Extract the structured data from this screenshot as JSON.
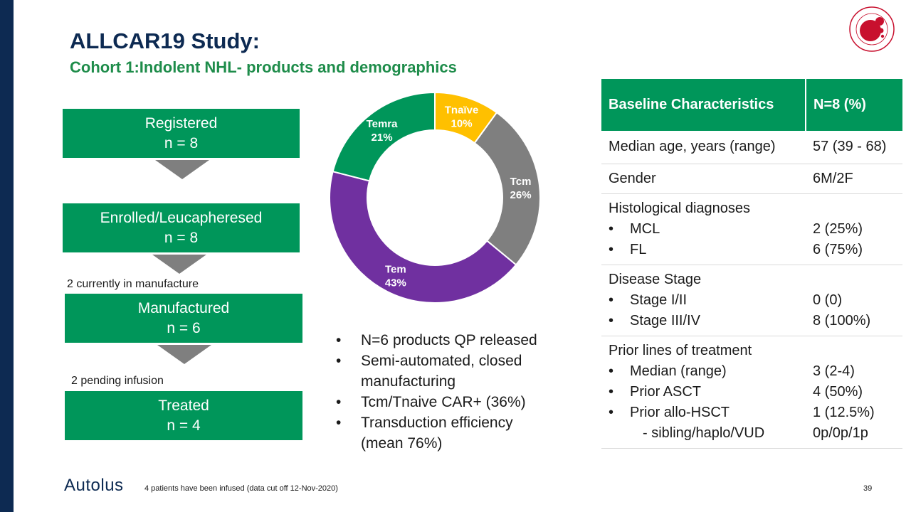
{
  "header": {
    "title": "ALLCAR19 Study:",
    "subtitle": "Cohort 1:Indolent NHL- products and demographics"
  },
  "flow": {
    "registered": {
      "label": "Registered",
      "n": "n = 8"
    },
    "enrolled": {
      "label": "Enrolled/Leucapheresed",
      "n": "n = 8"
    },
    "manufacture_note": "2 currently in manufacture",
    "manufactured": {
      "label": "Manufactured",
      "n": "n = 6"
    },
    "infusion_note": "2 pending infusion",
    "treated": {
      "label": "Treated",
      "n": "n = 4"
    }
  },
  "chart_data": {
    "type": "pie",
    "hole": true,
    "title": "",
    "categories": [
      "Tnaïve",
      "Tcm",
      "Tem",
      "Temra"
    ],
    "values": [
      10,
      26,
      43,
      21
    ],
    "labels": [
      "10%",
      "26%",
      "43%",
      "21%"
    ],
    "colors": [
      "#ffc000",
      "#7f7f7f",
      "#7030a0",
      "#00965a"
    ]
  },
  "bullets": [
    "N=6 products QP released",
    "Semi-automated, closed manufacturing",
    "Tcm/Tnaive CAR+ (36%)",
    "Transduction efficiency (mean 76%)"
  ],
  "table": {
    "headers": [
      "Baseline Characteristics",
      "N=8 (%)"
    ],
    "age": {
      "label": "Median age, years (range)",
      "value": "57 (39 - 68)"
    },
    "gender": {
      "label": "Gender",
      "value": "6M/2F"
    },
    "histology": {
      "label": "Histological diagnoses",
      "items": [
        {
          "label": "MCL",
          "value": "2 (25%)"
        },
        {
          "label": "FL",
          "value": "6 (75%)"
        }
      ]
    },
    "stage": {
      "label": "Disease Stage",
      "items": [
        {
          "label": "Stage I/II",
          "value": "0 (0)"
        },
        {
          "label": "Stage III/IV",
          "value": "8 (100%)"
        }
      ]
    },
    "prior": {
      "label": "Prior lines of treatment",
      "items": [
        {
          "label": "Median (range)",
          "value": "3 (2-4)"
        },
        {
          "label": "Prior ASCT",
          "value": "4 (50%)"
        },
        {
          "label": "Prior allo-HSCT",
          "value": "1 (12.5%)"
        }
      ],
      "sub_label": "- sibling/haplo/VUD",
      "sub_value": "0p/0p/1p"
    }
  },
  "footer": {
    "note": "4 patients have been infused (data cut off 12-Nov-2020)",
    "page": "39",
    "brand": "Autolus"
  }
}
